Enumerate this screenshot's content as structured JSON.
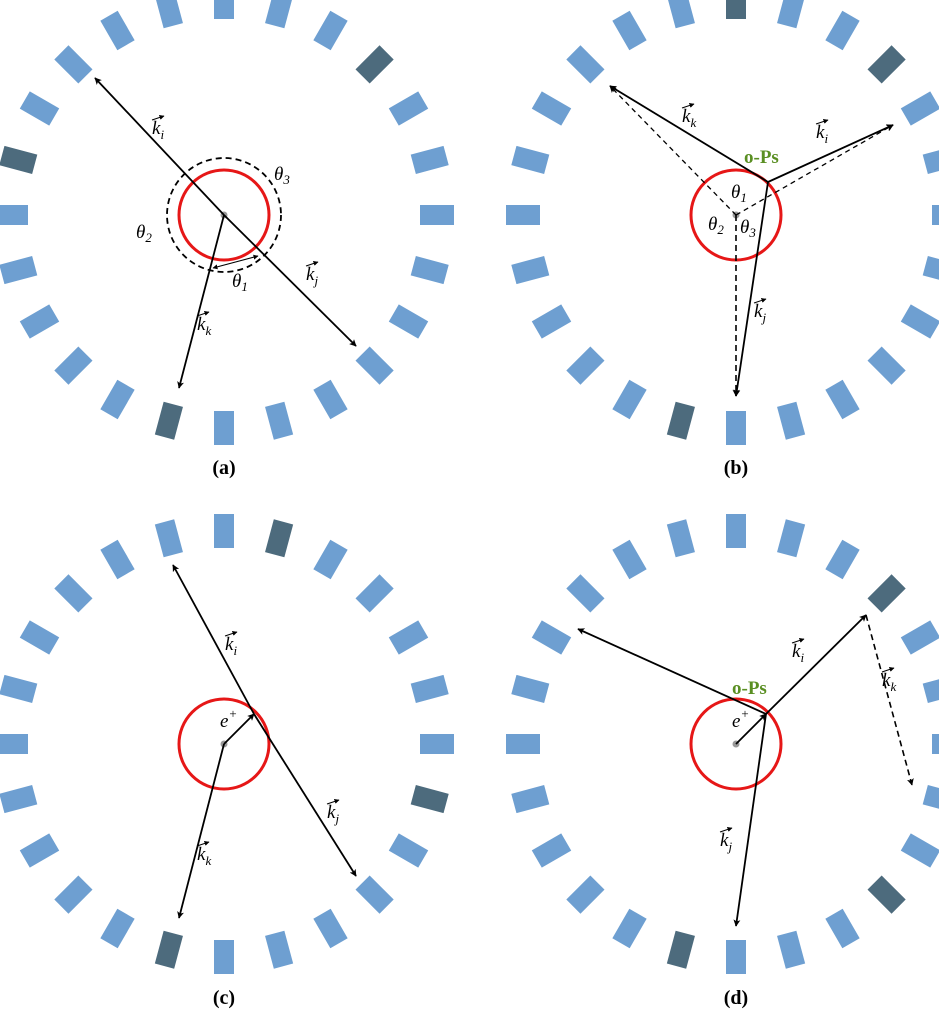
{
  "colors": {
    "detector": "#6e9fd1",
    "detector_hit": "#4d6b7d",
    "source_circle": "#e61717",
    "ops_text": "#5a8f23",
    "line": "#000000",
    "center_dot": "#999999"
  },
  "icons": {
    "vector_arrow": "arrow-icon"
  },
  "panels": [
    {
      "caption": "(a)",
      "vectors": [
        {
          "base": "k",
          "sub": "i"
        },
        {
          "base": "k",
          "sub": "j"
        },
        {
          "base": "k",
          "sub": "k"
        }
      ],
      "angles": [
        {
          "base": "θ",
          "sub": "1"
        },
        {
          "base": "θ",
          "sub": "2"
        },
        {
          "base": "θ",
          "sub": "3"
        }
      ]
    },
    {
      "caption": "(b)",
      "ops_label": "o-Ps",
      "vectors": [
        {
          "base": "k",
          "sub": "k"
        },
        {
          "base": "k",
          "sub": "i"
        },
        {
          "base": "k",
          "sub": "j"
        }
      ],
      "angles": [
        {
          "base": "θ",
          "sub": "1"
        },
        {
          "base": "θ",
          "sub": "2"
        },
        {
          "base": "θ",
          "sub": "3"
        }
      ]
    },
    {
      "caption": "(c)",
      "positron_label": {
        "base": "e",
        "sup": "+"
      },
      "vectors": [
        {
          "base": "k",
          "sub": "i"
        },
        {
          "base": "k",
          "sub": "j"
        },
        {
          "base": "k",
          "sub": "k"
        }
      ]
    },
    {
      "caption": "(d)",
      "ops_label": "o-Ps",
      "positron_label": {
        "base": "e",
        "sup": "+"
      },
      "vectors": [
        {
          "base": "k",
          "sub": "i"
        },
        {
          "base": "k",
          "sub": "k"
        },
        {
          "base": "k",
          "sub": "j"
        }
      ]
    }
  ]
}
